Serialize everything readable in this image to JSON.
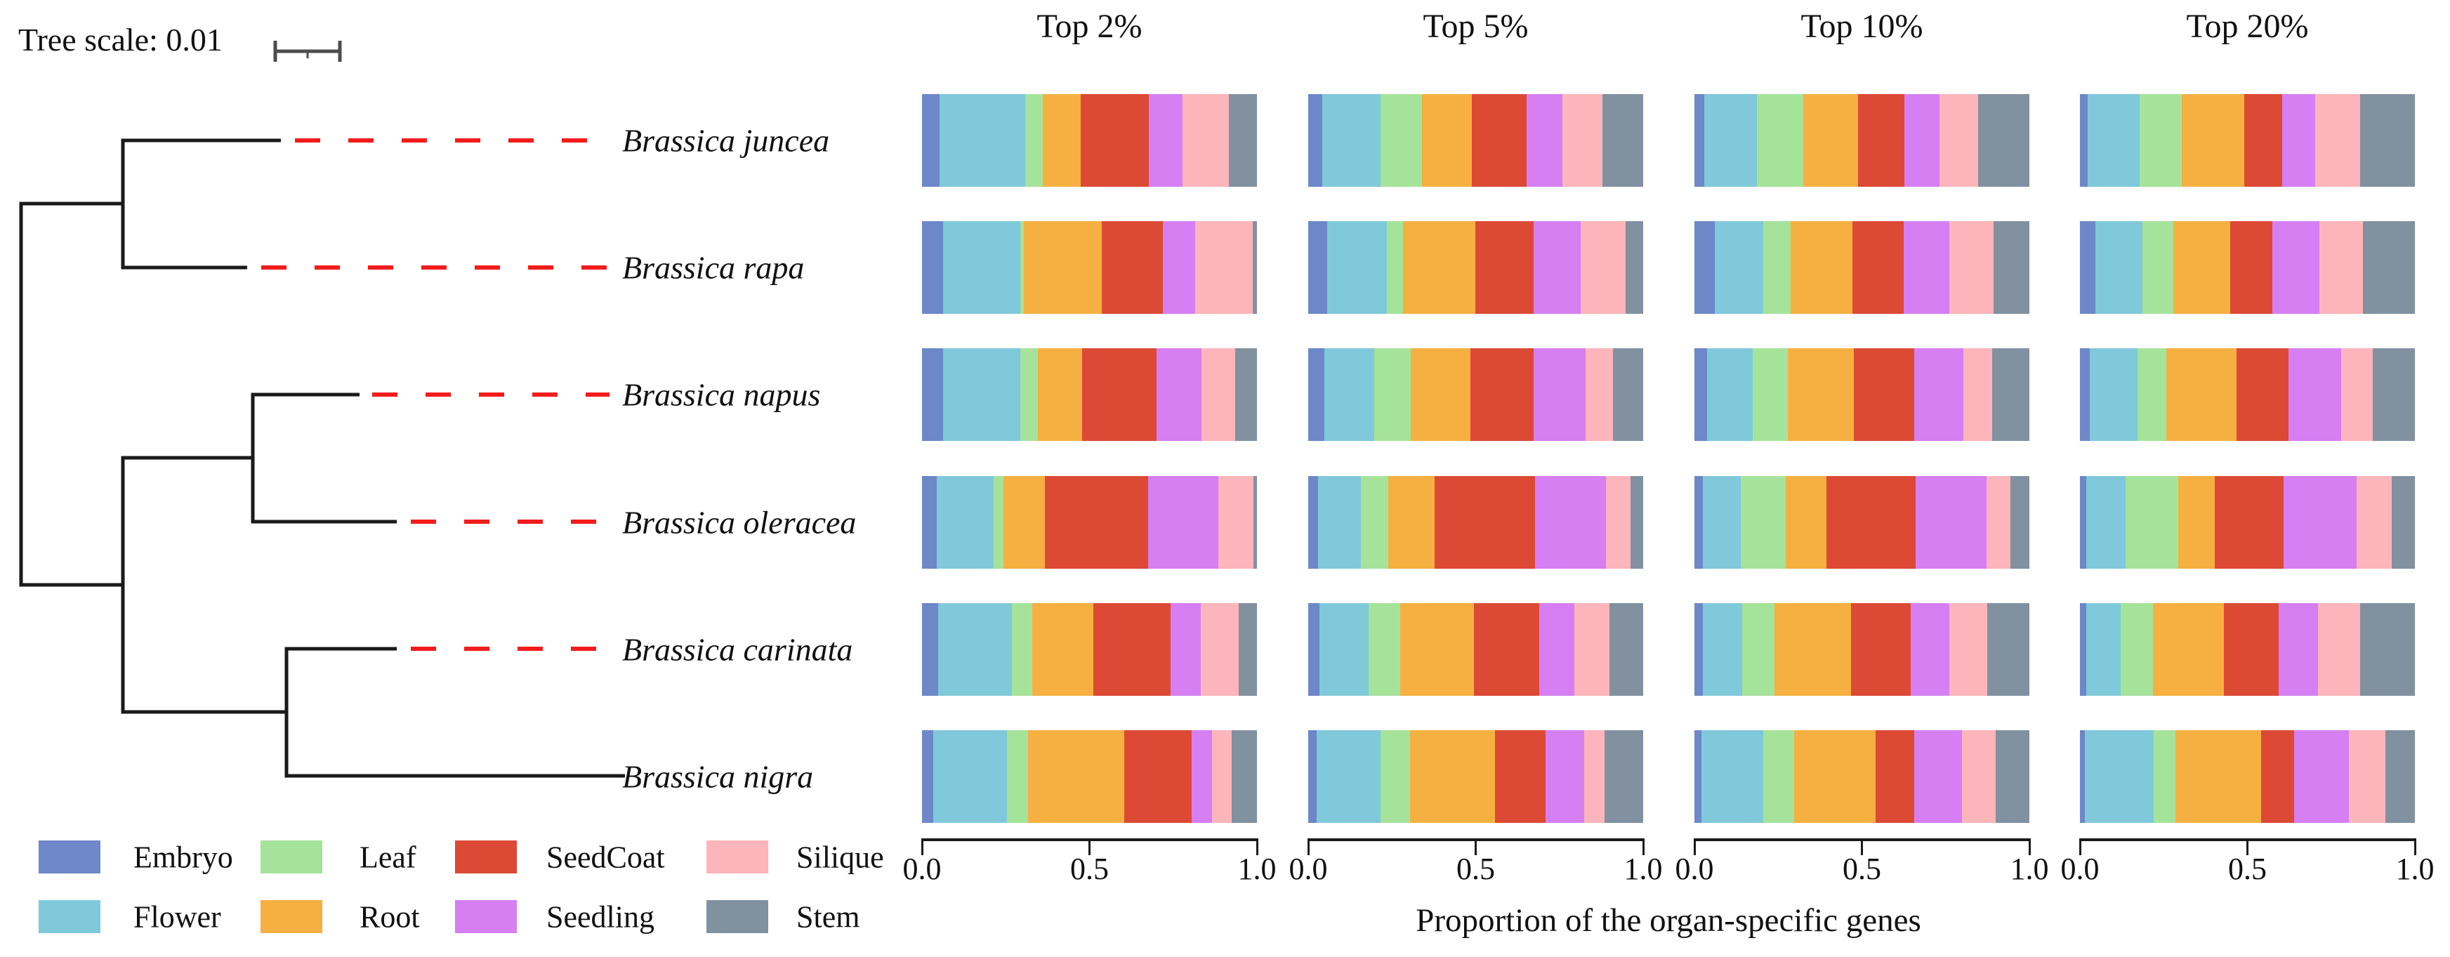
{
  "tree": {
    "scale_label": "Tree scale: 0.01",
    "dash_color": "#f21c1c",
    "species": [
      "Brassica juncea",
      "Brassica rapa",
      "Brassica napus",
      "Brassica oleracea",
      "Brassica carinata",
      "Brassica nigra"
    ]
  },
  "legend": {
    "items": [
      {
        "label": "Embryo",
        "color": "#6d87c8"
      },
      {
        "label": "Flower",
        "color": "#7fc9da"
      },
      {
        "label": "Leaf",
        "color": "#a6e39a"
      },
      {
        "label": "Root",
        "color": "#f5b041"
      },
      {
        "label": "SeedCoat",
        "color": "#dc4a35"
      },
      {
        "label": "Seedling",
        "color": "#d57ff2"
      },
      {
        "label": "Silique",
        "color": "#fcb5ba"
      },
      {
        "label": "Stem",
        "color": "#8191a0"
      }
    ],
    "grid_order_note": "column-major: [Embryo,Flower],[Leaf,Root],[SeedCoat,Seedling],[Silique,Stem]"
  },
  "chart_data": {
    "type": "bar",
    "orientation": "horizontal-stacked-normalized",
    "xlabel": "Proportion of the organ-specific genes",
    "xticks": [
      "0.0",
      "0.5",
      "1.0"
    ],
    "xlim": [
      0,
      1
    ],
    "organs": [
      "Embryo",
      "Flower",
      "Leaf",
      "Root",
      "SeedCoat",
      "Seedling",
      "Silique",
      "Stem"
    ],
    "species": [
      "Brassica juncea",
      "Brassica rapa",
      "Brassica napus",
      "Brassica oleracea",
      "Brassica carinata",
      "Brassica nigra"
    ],
    "panels": [
      {
        "label": "Top 2%",
        "rows": [
          [
            0.052,
            0.257,
            0.052,
            0.112,
            0.205,
            0.1,
            0.138,
            0.084
          ],
          [
            0.063,
            0.231,
            0.011,
            0.231,
            0.183,
            0.097,
            0.172,
            0.012
          ],
          [
            0.063,
            0.231,
            0.052,
            0.131,
            0.224,
            0.134,
            0.1,
            0.065
          ],
          [
            0.045,
            0.168,
            0.03,
            0.123,
            0.31,
            0.209,
            0.104,
            0.011
          ],
          [
            0.049,
            0.22,
            0.06,
            0.183,
            0.231,
            0.09,
            0.112,
            0.055
          ],
          [
            0.034,
            0.22,
            0.063,
            0.287,
            0.201,
            0.06,
            0.06,
            0.075
          ]
        ]
      },
      {
        "label": "Top 5%",
        "rows": [
          [
            0.041,
            0.175,
            0.123,
            0.149,
            0.164,
            0.108,
            0.119,
            0.121
          ],
          [
            0.056,
            0.179,
            0.049,
            0.216,
            0.172,
            0.142,
            0.134,
            0.052
          ],
          [
            0.049,
            0.149,
            0.108,
            0.179,
            0.187,
            0.157,
            0.082,
            0.089
          ],
          [
            0.03,
            0.127,
            0.082,
            0.139,
            0.3,
            0.21,
            0.075,
            0.037
          ],
          [
            0.034,
            0.146,
            0.094,
            0.221,
            0.195,
            0.105,
            0.105,
            0.1
          ],
          [
            0.026,
            0.191,
            0.086,
            0.255,
            0.15,
            0.116,
            0.06,
            0.116
          ]
        ]
      },
      {
        "label": "Top 10%",
        "rows": [
          [
            0.03,
            0.157,
            0.138,
            0.164,
            0.138,
            0.104,
            0.116,
            0.153
          ],
          [
            0.06,
            0.146,
            0.082,
            0.183,
            0.153,
            0.138,
            0.131,
            0.107
          ],
          [
            0.037,
            0.138,
            0.104,
            0.198,
            0.179,
            0.146,
            0.086,
            0.112
          ],
          [
            0.026,
            0.112,
            0.134,
            0.123,
            0.265,
            0.213,
            0.071,
            0.056
          ],
          [
            0.026,
            0.116,
            0.097,
            0.228,
            0.179,
            0.116,
            0.112,
            0.126
          ],
          [
            0.022,
            0.183,
            0.093,
            0.243,
            0.116,
            0.142,
            0.1,
            0.101
          ]
        ]
      },
      {
        "label": "Top 20%",
        "rows": [
          [
            0.023,
            0.156,
            0.125,
            0.186,
            0.114,
            0.099,
            0.133,
            0.164
          ],
          [
            0.046,
            0.141,
            0.091,
            0.171,
            0.125,
            0.141,
            0.129,
            0.156
          ],
          [
            0.03,
            0.141,
            0.087,
            0.209,
            0.156,
            0.156,
            0.095,
            0.126
          ],
          [
            0.019,
            0.118,
            0.156,
            0.11,
            0.205,
            0.217,
            0.106,
            0.069
          ],
          [
            0.019,
            0.103,
            0.095,
            0.213,
            0.163,
            0.118,
            0.125,
            0.164
          ],
          [
            0.015,
            0.205,
            0.065,
            0.255,
            0.099,
            0.163,
            0.11,
            0.088
          ]
        ]
      }
    ]
  }
}
